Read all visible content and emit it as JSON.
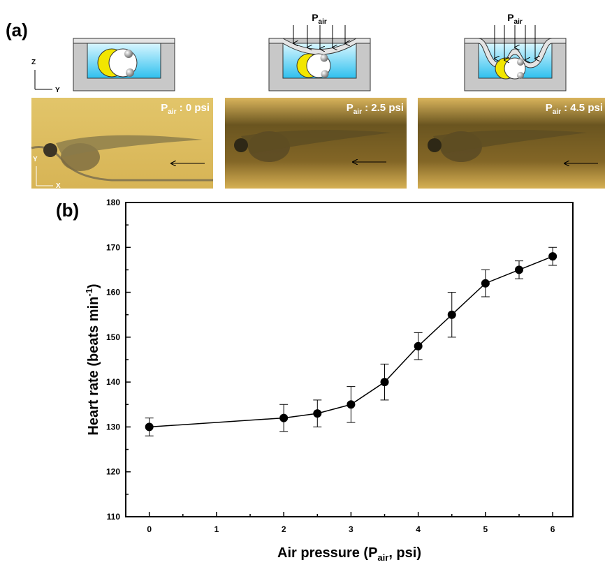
{
  "panel_a": {
    "label": "(a)",
    "diagram_axes": [
      "Z",
      "Y"
    ],
    "photo_axes": [
      "Y",
      "X"
    ],
    "diagrams": [
      {
        "pressure": {
          "base": "P",
          "sub": "air"
        }
      },
      {
        "pressure": {
          "base": "P",
          "sub": "air"
        }
      }
    ],
    "photos": [
      {
        "base": "P",
        "sub": "air",
        "text": " : 0 psi"
      },
      {
        "base": "P",
        "sub": "air",
        "text": " : 2.5 psi"
      },
      {
        "base": "P",
        "sub": "air",
        "text": " : 4.5 psi"
      }
    ]
  },
  "chart_data": {
    "type": "line",
    "panel_label": "(b)",
    "x_label": {
      "before": "Air pressure (P",
      "sub": "air",
      "after": ", psi)"
    },
    "y_label": {
      "before": "Heart rate (beats min",
      "sup": "-1",
      "after": ")"
    },
    "x": [
      0,
      2,
      2.5,
      3,
      3.5,
      4,
      4.5,
      5,
      5.5,
      6
    ],
    "values": [
      130,
      132,
      133,
      135,
      140,
      148,
      155,
      162,
      165,
      168
    ],
    "errors": [
      2,
      3,
      3,
      4,
      4,
      3,
      5,
      3,
      2,
      2
    ],
    "color": "#000000",
    "xlim": [
      -0.35,
      6.3
    ],
    "ylim": [
      110,
      180
    ],
    "xticks": [
      0,
      1,
      2,
      3,
      4,
      5,
      6
    ],
    "xminorticks": [
      0.5,
      1.5,
      2.5,
      3.5,
      4.5,
      5.5
    ],
    "yticks": [
      110,
      120,
      130,
      140,
      150,
      160,
      170,
      180
    ],
    "yminorticks": [
      115,
      125,
      135,
      145,
      155,
      165,
      175
    ]
  }
}
